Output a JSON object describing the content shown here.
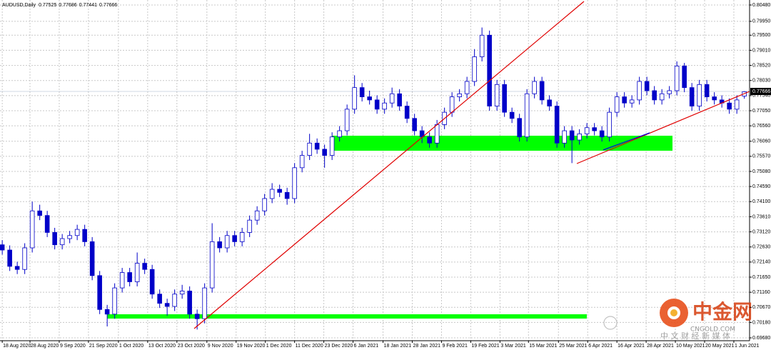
{
  "chart_data": {
    "type": "candlestick",
    "title": "AUDUSD,Daily",
    "open": [
      0.727,
      0.7253,
      0.72,
      0.719,
      0.726,
      0.738,
      0.7365,
      0.731,
      0.727,
      0.729,
      0.73,
      0.732,
      0.728,
      0.717,
      0.706,
      0.7045,
      0.713,
      0.718,
      0.715,
      0.721,
      0.719,
      0.711,
      0.708,
      0.707,
      0.711,
      0.712,
      0.7045,
      0.703,
      0.713,
      0.728,
      0.726,
      0.73,
      0.728,
      0.731,
      0.735,
      0.738,
      0.742,
      0.745,
      0.744,
      0.742,
      0.752,
      0.756,
      0.76,
      0.758,
      0.756,
      0.762,
      0.764,
      0.771,
      0.778,
      0.775,
      0.774,
      0.771,
      0.773,
      0.776,
      0.772,
      0.768,
      0.764,
      0.762,
      0.76,
      0.766,
      0.77,
      0.775,
      0.776,
      0.78,
      0.788,
      0.795,
      0.772,
      0.779,
      0.77,
      0.768,
      0.762,
      0.776,
      0.78,
      0.774,
      0.772,
      0.76,
      0.764,
      0.761,
      0.763,
      0.765,
      0.764,
      0.762,
      0.77,
      0.775,
      0.773,
      0.774,
      0.78,
      0.777,
      0.774,
      0.776,
      0.777,
      0.785,
      0.778,
      0.772,
      0.779,
      0.775,
      0.774,
      0.773,
      0.771,
      0.77525
    ],
    "high": [
      0.7285,
      0.7268,
      0.7215,
      0.7275,
      0.741,
      0.74,
      0.738,
      0.7325,
      0.7305,
      0.7315,
      0.7335,
      0.7335,
      0.7295,
      0.7185,
      0.7075,
      0.7145,
      0.7195,
      0.7195,
      0.7245,
      0.7225,
      0.7205,
      0.7125,
      0.7095,
      0.7125,
      0.714,
      0.7135,
      0.706,
      0.7145,
      0.734,
      0.7295,
      0.7315,
      0.7315,
      0.7325,
      0.7365,
      0.7395,
      0.7435,
      0.747,
      0.7465,
      0.7455,
      0.7535,
      0.7575,
      0.763,
      0.7615,
      0.7595,
      0.7635,
      0.7655,
      0.7725,
      0.782,
      0.7795,
      0.777,
      0.7755,
      0.7745,
      0.778,
      0.7775,
      0.7735,
      0.7695,
      0.7655,
      0.7635,
      0.7675,
      0.7715,
      0.7765,
      0.7775,
      0.7815,
      0.7905,
      0.7975,
      0.7965,
      0.7805,
      0.7805,
      0.7715,
      0.7695,
      0.7775,
      0.7815,
      0.7815,
      0.7755,
      0.7735,
      0.7655,
      0.7655,
      0.7645,
      0.7665,
      0.7665,
      0.7655,
      0.7715,
      0.7765,
      0.7765,
      0.7755,
      0.7815,
      0.7815,
      0.7785,
      0.7775,
      0.7785,
      0.7865,
      0.786,
      0.7795,
      0.7805,
      0.7805,
      0.7765,
      0.7755,
      0.7745,
      0.7755,
      0.77686
    ],
    "low": [
      0.7238,
      0.7185,
      0.7175,
      0.7175,
      0.7245,
      0.735,
      0.7295,
      0.7255,
      0.7255,
      0.7275,
      0.7285,
      0.7265,
      0.7155,
      0.7045,
      0.7005,
      0.703,
      0.7115,
      0.7135,
      0.7135,
      0.7175,
      0.7095,
      0.7065,
      0.704,
      0.7055,
      0.7095,
      0.703,
      0.6995,
      0.7015,
      0.7115,
      0.7245,
      0.7245,
      0.7265,
      0.7265,
      0.7295,
      0.7335,
      0.7365,
      0.7405,
      0.7425,
      0.74,
      0.7405,
      0.7505,
      0.7545,
      0.7565,
      0.752,
      0.7545,
      0.7605,
      0.7625,
      0.7695,
      0.7735,
      0.7725,
      0.7695,
      0.7695,
      0.7715,
      0.7705,
      0.7665,
      0.7625,
      0.76,
      0.7585,
      0.7585,
      0.7645,
      0.7685,
      0.7735,
      0.7745,
      0.7785,
      0.7865,
      0.7705,
      0.7705,
      0.7685,
      0.7665,
      0.7605,
      0.7605,
      0.7745,
      0.7725,
      0.7705,
      0.7585,
      0.7585,
      0.7535,
      0.7595,
      0.7615,
      0.7625,
      0.7605,
      0.7605,
      0.7685,
      0.7715,
      0.7715,
      0.7725,
      0.7755,
      0.7725,
      0.7725,
      0.7745,
      0.7755,
      0.7765,
      0.7705,
      0.7705,
      0.7735,
      0.7725,
      0.7715,
      0.7695,
      0.7695,
      0.77441
    ],
    "close": [
      0.7253,
      0.72,
      0.719,
      0.726,
      0.738,
      0.7365,
      0.731,
      0.727,
      0.729,
      0.73,
      0.732,
      0.728,
      0.717,
      0.706,
      0.7045,
      0.713,
      0.718,
      0.715,
      0.721,
      0.719,
      0.711,
      0.708,
      0.707,
      0.711,
      0.712,
      0.7045,
      0.703,
      0.713,
      0.728,
      0.726,
      0.73,
      0.728,
      0.731,
      0.735,
      0.738,
      0.742,
      0.745,
      0.744,
      0.742,
      0.752,
      0.756,
      0.76,
      0.758,
      0.756,
      0.762,
      0.764,
      0.771,
      0.778,
      0.775,
      0.774,
      0.771,
      0.773,
      0.776,
      0.772,
      0.768,
      0.764,
      0.762,
      0.76,
      0.766,
      0.77,
      0.775,
      0.776,
      0.78,
      0.788,
      0.795,
      0.772,
      0.779,
      0.77,
      0.768,
      0.762,
      0.776,
      0.78,
      0.774,
      0.772,
      0.76,
      0.764,
      0.761,
      0.763,
      0.765,
      0.764,
      0.762,
      0.77,
      0.775,
      0.773,
      0.774,
      0.78,
      0.777,
      0.774,
      0.776,
      0.777,
      0.785,
      0.778,
      0.772,
      0.779,
      0.775,
      0.774,
      0.773,
      0.771,
      0.774,
      0.77666
    ],
    "up_color": "#ffffff",
    "down_color": "#0000c8",
    "edge_color": "#0000c8",
    "xlim": [
      -0.3,
      99.7
    ],
    "xticks": [
      {
        "value": 0,
        "label": "18 Aug 2020"
      },
      {
        "value": 3.7,
        "label": "28 Aug 2020"
      },
      {
        "value": 7.6,
        "label": "9 Sep 2020"
      },
      {
        "value": 11.5,
        "label": "21 Sep 2020"
      },
      {
        "value": 15.5,
        "label": "1 Oct 2020"
      },
      {
        "value": 19.4,
        "label": "13 Oct 2020"
      },
      {
        "value": 23.3,
        "label": "23 Oct 2020"
      },
      {
        "value": 27.3,
        "label": "9 Nov 2020"
      },
      {
        "value": 31.2,
        "label": "19 Nov 2020"
      },
      {
        "value": 35.1,
        "label": "1 Dec 2020"
      },
      {
        "value": 39.0,
        "label": "11 Dec 2020"
      },
      {
        "value": 42.9,
        "label": "23 Dec 2020"
      },
      {
        "value": 46.8,
        "label": "6 Jan 2021"
      },
      {
        "value": 50.8,
        "label": "18 Jan 2021"
      },
      {
        "value": 54.7,
        "label": "28 Jan 2021"
      },
      {
        "value": 58.6,
        "label": "9 Feb 2021"
      },
      {
        "value": 62.5,
        "label": "19 Feb 2021"
      },
      {
        "value": 66.4,
        "label": "3 Mar 2021"
      },
      {
        "value": 70.2,
        "label": "15 Mar 2021"
      },
      {
        "value": 74.2,
        "label": "25 Mar 2021"
      },
      {
        "value": 78.1,
        "label": "6 Apr 2021"
      },
      {
        "value": 82.0,
        "label": "16 Apr 2021"
      },
      {
        "value": 85.9,
        "label": "28 Apr 2021"
      },
      {
        "value": 89.8,
        "label": "10 May 2021"
      },
      {
        "value": 93.7,
        "label": "20 May 2021"
      },
      {
        "value": 97.6,
        "label": "1 Jun 2021"
      }
    ],
    "ylim": [
      0.6968,
      0.8048
    ],
    "yticks": [
      {
        "value": 0.8048,
        "label": "0.80480"
      },
      {
        "value": 0.7995,
        "label": "0.79950"
      },
      {
        "value": 0.795,
        "label": "0.79500"
      },
      {
        "value": 0.7901,
        "label": "0.79010"
      },
      {
        "value": 0.7852,
        "label": "0.78520"
      },
      {
        "value": 0.7803,
        "label": "0.78030"
      },
      {
        "value": 0.7754,
        "label": "0.77540"
      },
      {
        "value": 0.7705,
        "label": "0.77050"
      },
      {
        "value": 0.7656,
        "label": "0.76560"
      },
      {
        "value": 0.7606,
        "label": "0.76060"
      },
      {
        "value": 0.7557,
        "label": "0.75570"
      },
      {
        "value": 0.7508,
        "label": "0.75080"
      },
      {
        "value": 0.7459,
        "label": "0.74590"
      },
      {
        "value": 0.741,
        "label": "0.74100"
      },
      {
        "value": 0.7361,
        "label": "0.73610"
      },
      {
        "value": 0.7312,
        "label": "0.73120"
      },
      {
        "value": 0.7263,
        "label": "0.72630"
      },
      {
        "value": 0.7214,
        "label": "0.72140"
      },
      {
        "value": 0.7165,
        "label": "0.71650"
      },
      {
        "value": 0.7116,
        "label": "0.71160"
      },
      {
        "value": 0.7067,
        "label": "0.70670"
      },
      {
        "value": 0.7018,
        "label": "0.70180"
      },
      {
        "value": 0.6968,
        "label": "0.69680"
      }
    ],
    "grid": true
  },
  "watermark": {
    "brand": "中金网",
    "site": "CNGOLD.COM",
    "slogan": "中 文 财 经 新 媒 体"
  }
}
